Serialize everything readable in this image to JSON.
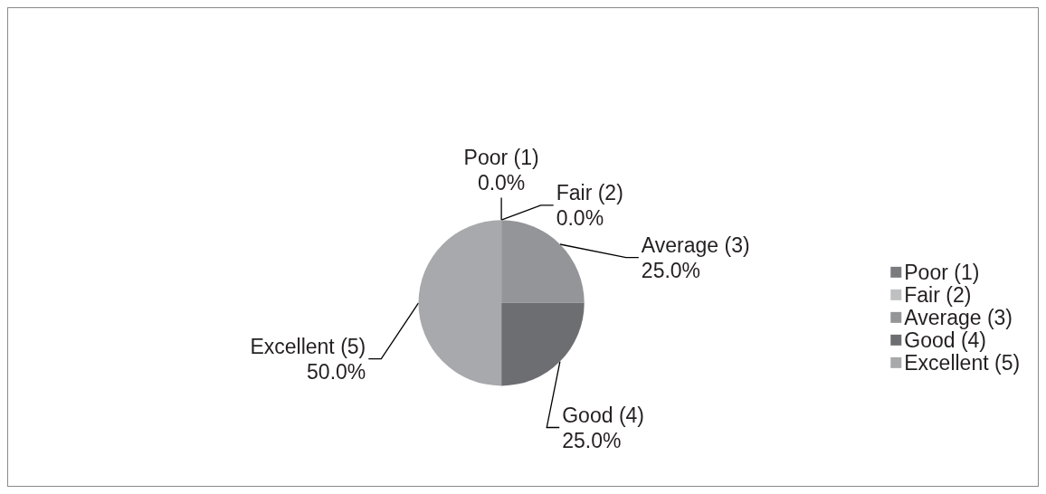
{
  "chart_data": {
    "type": "pie",
    "categories": [
      "Poor (1)",
      "Fair (2)",
      "Average (3)",
      "Good (4)",
      "Excellent (5)"
    ],
    "values": [
      0,
      0,
      25,
      25,
      50
    ],
    "colors": [
      "#7a7b7e",
      "#bfc0c2",
      "#939598",
      "#6d6e71",
      "#a7a9ac"
    ],
    "value_labels": [
      "0.0%",
      "0.0%",
      "25.0%",
      "25.0%",
      "50.0%"
    ],
    "legend": "right"
  }
}
